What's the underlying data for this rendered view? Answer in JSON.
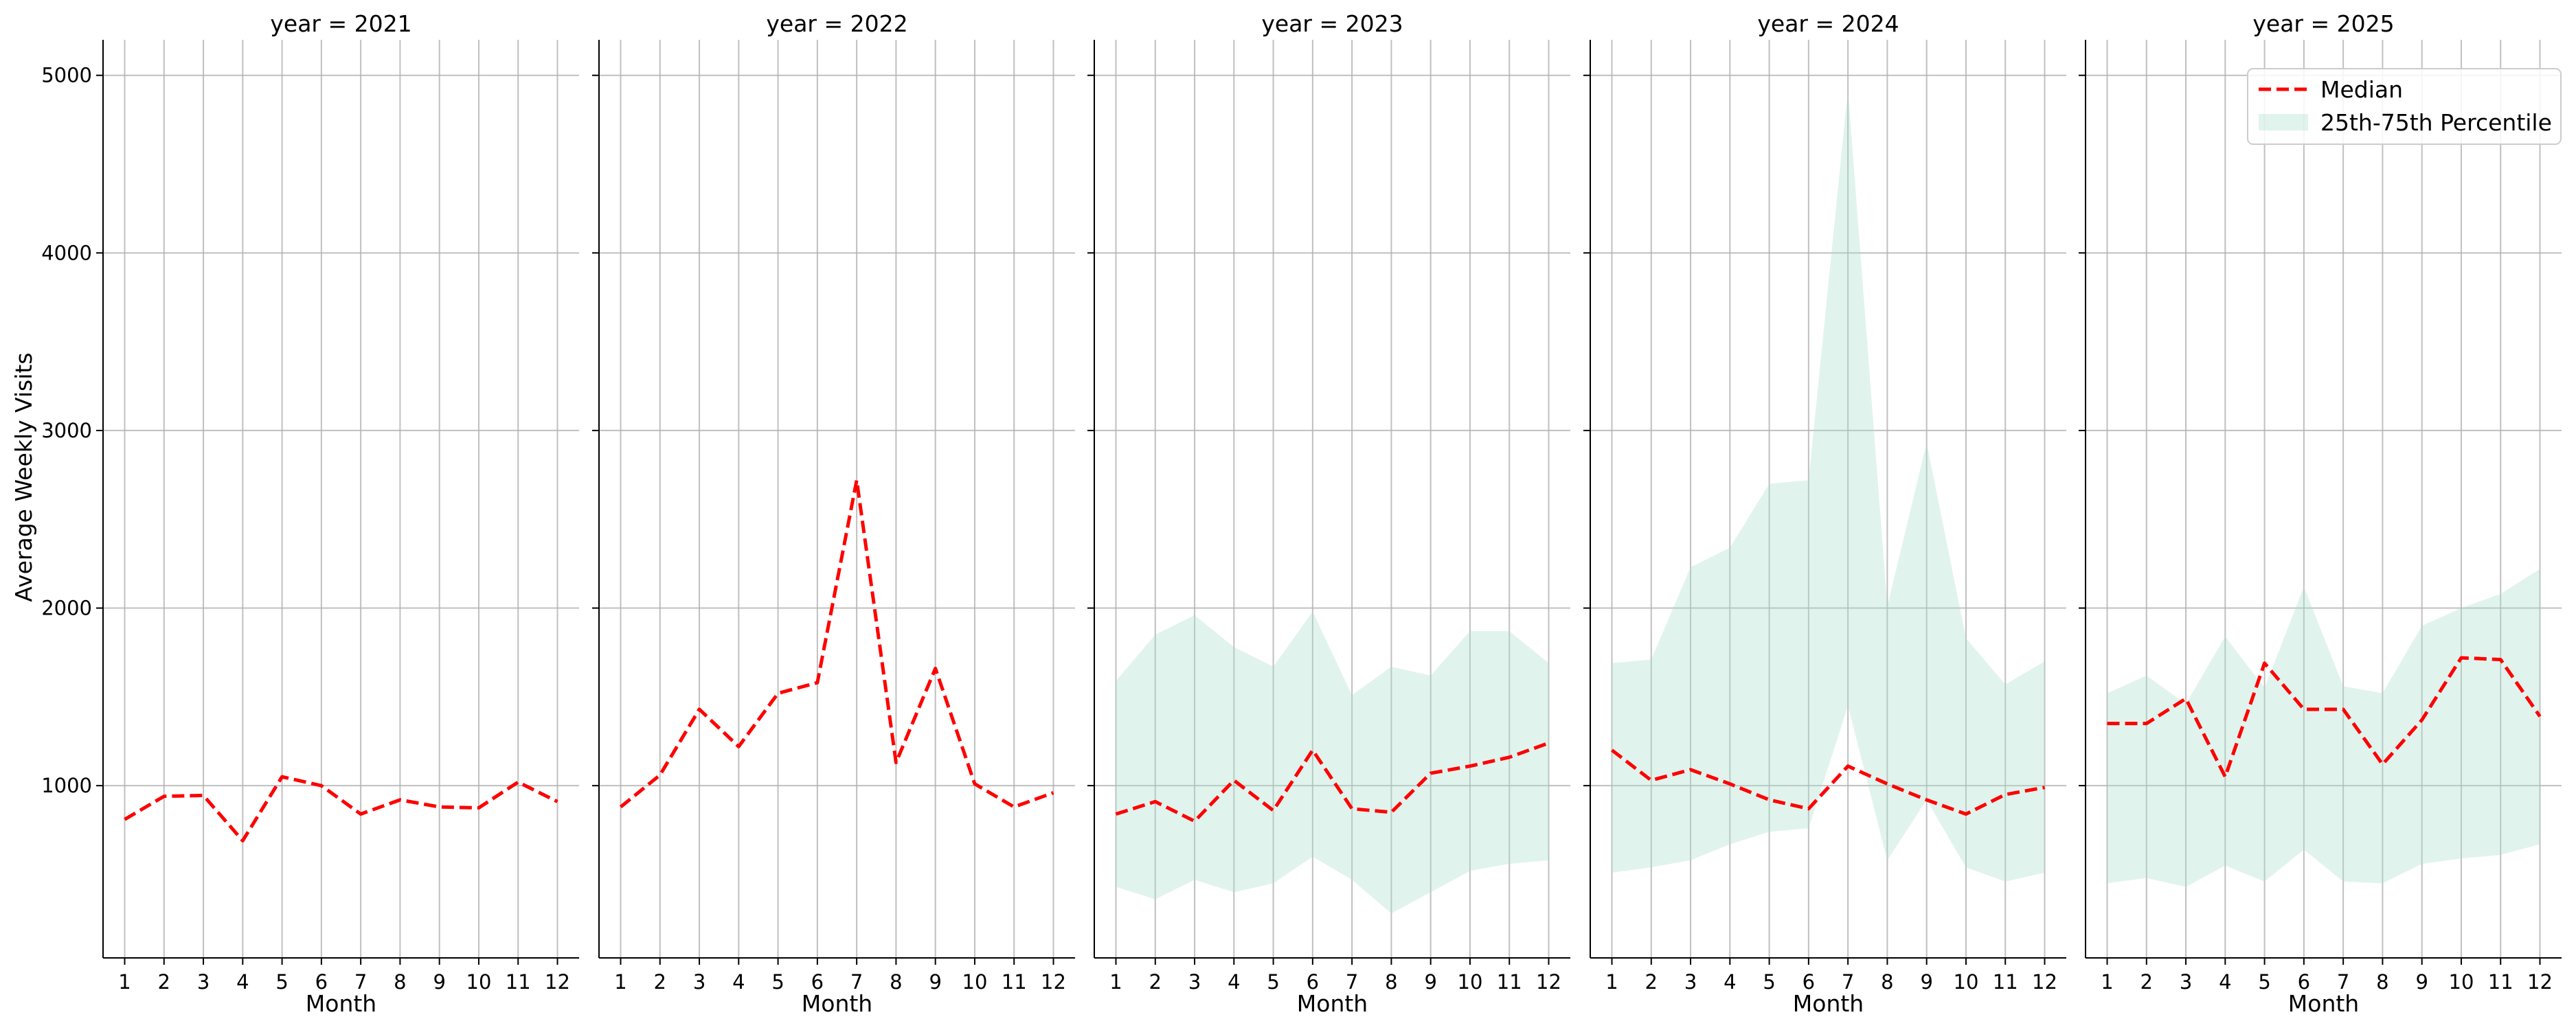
{
  "figure": {
    "ylabel": "Average Weekly Visits",
    "legend": {
      "placement": "top-right of last panel",
      "median_label": "Median",
      "band_label": "25th-75th Percentile"
    },
    "colors": {
      "median": "#ff0000",
      "band": "#a8dccb",
      "grid": "#b0b0b0",
      "axis": "#000000"
    }
  },
  "chart_data": [
    {
      "type": "line",
      "title": "year = 2021",
      "xlabel": "Month",
      "ylabel": "Average Weekly Visits",
      "x": [
        1,
        2,
        3,
        4,
        5,
        6,
        7,
        8,
        9,
        10,
        11,
        12
      ],
      "xlim": [
        0.45,
        12.55
      ],
      "ylim": [
        30,
        5200
      ],
      "yticks": [
        1000,
        2000,
        3000,
        4000,
        5000
      ],
      "grid": true,
      "series": [
        {
          "name": "Median",
          "values": [
            810,
            940,
            945,
            690,
            1050,
            1000,
            840,
            920,
            880,
            875,
            1020,
            910
          ]
        }
      ],
      "band": null
    },
    {
      "type": "line",
      "title": "year = 2022",
      "xlabel": "Month",
      "x": [
        1,
        2,
        3,
        4,
        5,
        6,
        7,
        8,
        9,
        10,
        11,
        12
      ],
      "xlim": [
        0.45,
        12.55
      ],
      "ylim": [
        30,
        5200
      ],
      "yticks": [
        1000,
        2000,
        3000,
        4000,
        5000
      ],
      "grid": true,
      "series": [
        {
          "name": "Median",
          "values": [
            880,
            1060,
            1430,
            1220,
            1520,
            1580,
            2720,
            1130,
            1660,
            1010,
            880,
            960
          ]
        }
      ],
      "band": null
    },
    {
      "type": "area",
      "title": "year = 2023",
      "xlabel": "Month",
      "x": [
        1,
        2,
        3,
        4,
        5,
        6,
        7,
        8,
        9,
        10,
        11,
        12
      ],
      "xlim": [
        0.45,
        12.55
      ],
      "ylim": [
        30,
        5200
      ],
      "yticks": [
        1000,
        2000,
        3000,
        4000,
        5000
      ],
      "grid": true,
      "series": [
        {
          "name": "Median",
          "values": [
            840,
            910,
            800,
            1030,
            860,
            1200,
            870,
            850,
            1070,
            1110,
            1160,
            1240
          ]
        }
      ],
      "band": {
        "name": "25th-75th Percentile",
        "lower": [
          430,
          360,
          470,
          400,
          450,
          600,
          470,
          280,
          400,
          520,
          560,
          580
        ],
        "upper": [
          1590,
          1850,
          1960,
          1780,
          1670,
          1980,
          1510,
          1670,
          1620,
          1870,
          1870,
          1690
        ]
      }
    },
    {
      "type": "area",
      "title": "year = 2024",
      "xlabel": "Month",
      "x": [
        1,
        2,
        3,
        4,
        5,
        6,
        7,
        8,
        9,
        10,
        11,
        12
      ],
      "xlim": [
        0.45,
        12.55
      ],
      "ylim": [
        30,
        5200
      ],
      "yticks": [
        1000,
        2000,
        3000,
        4000,
        5000
      ],
      "grid": true,
      "series": [
        {
          "name": "Median",
          "values": [
            1200,
            1030,
            1090,
            1010,
            920,
            870,
            1110,
            1010,
            920,
            840,
            950,
            990
          ]
        }
      ],
      "band": {
        "name": "25th-75th Percentile",
        "lower": [
          510,
          540,
          580,
          670,
          740,
          760,
          1450,
          580,
          920,
          540,
          460,
          510
        ],
        "upper": [
          1690,
          1710,
          2230,
          2340,
          2700,
          2720,
          4920,
          2010,
          2930,
          1830,
          1570,
          1700
        ]
      }
    },
    {
      "type": "area",
      "title": "year = 2025",
      "xlabel": "Month",
      "x": [
        1,
        2,
        3,
        4,
        5,
        6,
        7,
        8,
        9,
        10,
        11,
        12
      ],
      "xlim": [
        0.45,
        12.55
      ],
      "ylim": [
        30,
        5200
      ],
      "yticks": [
        1000,
        2000,
        3000,
        4000,
        5000
      ],
      "grid": true,
      "series": [
        {
          "name": "Median",
          "values": [
            1350,
            1350,
            1490,
            1050,
            1690,
            1430,
            1430,
            1120,
            1370,
            1720,
            1710,
            1390
          ]
        }
      ],
      "band": {
        "name": "25th-75th Percentile",
        "lower": [
          450,
          480,
          430,
          550,
          460,
          640,
          460,
          450,
          560,
          590,
          610,
          670
        ],
        "upper": [
          1520,
          1620,
          1460,
          1840,
          1550,
          2120,
          1560,
          1520,
          1900,
          2000,
          2080,
          2220
        ]
      }
    }
  ]
}
